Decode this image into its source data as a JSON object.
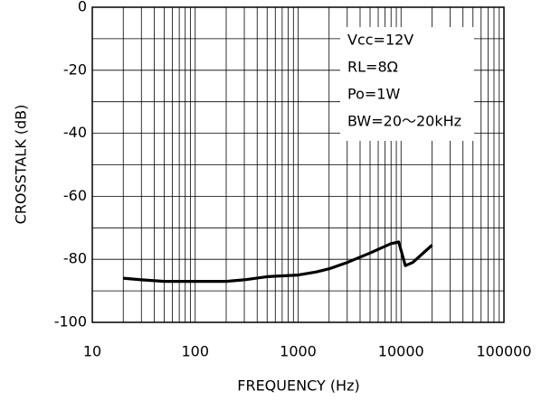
{
  "chart_data": {
    "type": "line",
    "xlabel": "FREQUENCY (Hz)",
    "ylabel": "CROSSTALK (dB)",
    "log_x": true,
    "grid": true,
    "xlim": [
      10,
      100000
    ],
    "xticks": [
      10,
      100,
      1000,
      10000,
      100000
    ],
    "ylim": [
      -100,
      0
    ],
    "yticks": [
      -100,
      -80,
      -60,
      -40,
      -20,
      0
    ],
    "annotations": [
      "Vcc=12V",
      "RL=8Ω",
      "Po=1W",
      "BW=20～20kHz"
    ],
    "series": [
      {
        "color": "#000000",
        "x": [
          20,
          30,
          50,
          70,
          100,
          200,
          300,
          500,
          1000,
          1500,
          2000,
          3000,
          5000,
          8000,
          9500,
          11000,
          13000,
          20000
        ],
        "values": [
          -86,
          -86.5,
          -87,
          -87,
          -87,
          -87,
          -86.5,
          -85.5,
          -85,
          -84,
          -83,
          -81,
          -78,
          -75,
          -74.5,
          -82,
          -81,
          -75.5
        ]
      }
    ]
  }
}
